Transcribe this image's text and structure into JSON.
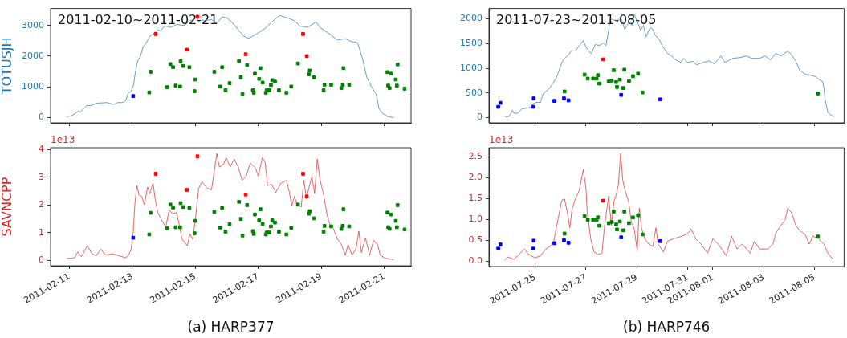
{
  "chart_data": [
    {
      "type": "line",
      "title": "2011-02-10~2011-02-21",
      "ylabel": "TOTUSJH",
      "tick_labels": "y",
      "xlim": [
        "2011-02-10T09:40",
        "2011-02-21T20:30"
      ],
      "xticks": [
        "2011-02-11",
        "2011-02-13",
        "2011-02-15",
        "2011-02-17",
        "2011-02-19",
        "2011-02-21"
      ],
      "ylim": [
        -170,
        3550
      ],
      "yticks": [
        0,
        1000,
        2000,
        3000
      ],
      "series": [
        {
          "type": "line",
          "color": "#1f77b4",
          "x": [
            "2011-02-10T22:00",
            "2011-02-11T02:00",
            "2011-02-11T07:10",
            "2011-02-11T08:10",
            "2011-02-11T13:20",
            "2011-02-11T17:20",
            "2011-02-11T20:25",
            "2011-02-12T04:35",
            "2011-02-12T09:40",
            "2011-02-12T12:50",
            "2011-02-12T16:50",
            "2011-02-12T18:55",
            "2011-02-12T20:55",
            "2011-02-12T23:00",
            "2011-02-13T01:00",
            "2011-02-13T02:00",
            "2011-02-13T03:05",
            "2011-02-13T04:05",
            "2011-02-13T06:05",
            "2011-02-13T08:10",
            "2011-02-13T10:15",
            "2011-02-13T13:20",
            "2011-02-13T16:20",
            "2011-02-13T19:25",
            "2011-02-13T21:30",
            "2011-02-14T00:30",
            "2011-02-14T05:40",
            "2011-02-14T09:45",
            "2011-02-14T15:50",
            "2011-02-14T19:55",
            "2011-02-15T00:00",
            "2011-02-15T03:05",
            "2011-02-15T06:10",
            "2011-02-15T12:20",
            "2011-02-15T16:25",
            "2011-02-15T20:30",
            "2011-02-16T00:30",
            "2011-02-16T04:40",
            "2011-02-16T08:45",
            "2011-02-16T12:50",
            "2011-02-16T16:55",
            "2011-02-16T23:00",
            "2011-02-17T05:10",
            "2011-02-17T11:15",
            "2011-02-17T16:25",
            "2011-02-17T22:30",
            "2011-02-18T03:40",
            "2011-02-18T07:45",
            "2011-02-18T13:50",
            "2011-02-18T20:00",
            "2011-02-19T00:00",
            "2011-02-19T06:10",
            "2011-02-19T12:20",
            "2011-02-19T18:25",
            "2011-02-19T22:30",
            "2011-02-20T03:40",
            "2011-02-20T04:40",
            "2011-02-20T07:40",
            "2011-02-20T10:45",
            "2011-02-20T14:50",
            "2011-02-20T17:55",
            "2011-02-20T20:00",
            "2011-02-20T23:00",
            "2011-02-21T03:05",
            "2011-02-21T07:10"
          ],
          "values": [
            30,
            70,
            220,
            180,
            390,
            400,
            470,
            490,
            430,
            490,
            490,
            550,
            810,
            850,
            1060,
            1390,
            1640,
            1850,
            1980,
            2310,
            2400,
            2650,
            2730,
            2860,
            2820,
            2980,
            2940,
            3030,
            3000,
            3150,
            3220,
            3320,
            3150,
            3190,
            3070,
            3280,
            3240,
            3070,
            2860,
            2650,
            2580,
            2730,
            2900,
            3150,
            3320,
            3240,
            3150,
            2980,
            2940,
            3110,
            2900,
            2730,
            2520,
            2570,
            2480,
            2440,
            2310,
            1890,
            1310,
            970,
            760,
            300,
            130,
            30,
            0
          ]
        },
        {
          "type": "scatter",
          "color": "#0000ff",
          "x": [
            "2011-02-13T00:40"
          ],
          "marker": "square",
          "values": [
            700
          ]
        },
        {
          "type": "scatter",
          "color": "#ff0000",
          "x": [
            "2011-02-13T17:50",
            "2011-02-14T17:30",
            "2011-02-15T01:40",
            "2011-02-16T14:25",
            "2011-02-18T10:10",
            "2011-02-18T13:00"
          ],
          "marker": "square",
          "values": [
            2720,
            2210,
            3280,
            2060,
            2720,
            2000
          ]
        },
        {
          "type": "scatter",
          "color": "#008000",
          "marker": "square",
          "x": [
            "2011-02-13T12:55",
            "2011-02-13T13:55",
            "2011-02-14T02:35",
            "2011-02-14T05:00",
            "2011-02-14T07:05",
            "2011-02-14T09:05",
            "2011-02-14T12:25",
            "2011-02-14T12:50",
            "2011-02-14T14:50",
            "2011-02-14T19:30",
            "2011-02-14T23:25",
            "2011-02-15T00:00",
            "2011-02-15T14:30",
            "2011-02-15T19:00",
            "2011-02-15T20:30",
            "2011-02-15T23:05",
            "2011-02-16T02:10",
            "2011-02-16T09:20",
            "2011-02-16T10:45",
            "2011-02-16T12:00",
            "2011-02-16T15:30",
            "2011-02-16T19:55",
            "2011-02-16T20:35",
            "2011-02-16T21:25",
            "2011-02-17T00:40",
            "2011-02-17T01:40",
            "2011-02-17T03:20",
            "2011-02-17T05:45",
            "2011-02-17T06:35",
            "2011-02-17T08:35",
            "2011-02-17T09:40",
            "2011-02-17T10:40",
            "2011-02-17T12:45",
            "2011-02-17T15:45",
            "2011-02-17T21:30",
            "2011-02-18T01:10",
            "2011-02-18T06:15",
            "2011-02-18T14:40",
            "2011-02-18T15:15",
            "2011-02-18T18:30",
            "2011-02-19T01:50",
            "2011-02-19T02:30",
            "2011-02-19T07:35",
            "2011-02-19T15:20",
            "2011-02-19T16:25",
            "2011-02-19T17:00",
            "2011-02-19T21:20",
            "2011-02-21T02:30",
            "2011-02-21T03:05",
            "2011-02-21T04:10",
            "2011-02-21T05:10",
            "2011-02-21T08:50",
            "2011-02-21T09:40",
            "2011-02-21T10:15",
            "2011-02-21T15:35"
          ],
          "values": [
            820,
            1490,
            990,
            1740,
            1640,
            1040,
            1010,
            1830,
            1680,
            1640,
            860,
            1240,
            1490,
            1010,
            1640,
            890,
            1120,
            1840,
            1310,
            770,
            1710,
            890,
            810,
            1430,
            1260,
            1610,
            1140,
            810,
            890,
            890,
            1060,
            1220,
            1170,
            890,
            810,
            1010,
            1760,
            1410,
            1530,
            1310,
            890,
            1070,
            1070,
            960,
            1070,
            1610,
            1070,
            1480,
            1040,
            960,
            1430,
            1240,
            1040,
            1730,
            940
          ]
        }
      ]
    },
    {
      "type": "line",
      "title": "2011-07-23~2011-08-05",
      "tick_labels": "y",
      "xlim": [
        "2011-07-23T04:20",
        "2011-08-06T04:00"
      ],
      "xticks": [
        "2011-07-25",
        "2011-07-27",
        "2011-07-29",
        "2011-07-31",
        "2011-08-01",
        "2011-08-03",
        "2011-08-05"
      ],
      "ylim": [
        -105,
        2210
      ],
      "yticks": [
        0,
        500,
        1000,
        1500,
        2000
      ],
      "series": [
        {
          "type": "line",
          "color": "#1f77b4",
          "x": [
            "2011-07-23T19:40",
            "2011-07-23T22:40",
            "2011-07-24T01:20",
            "2011-07-24T02:30",
            "2011-07-24T03:50",
            "2011-07-24T07:35",
            "2011-07-24T11:25",
            "2011-07-24T15:10",
            "2011-07-24T20:10",
            "2011-07-24T22:40",
            "2011-07-25T01:15",
            "2011-07-25T05:05",
            "2011-07-25T07:35",
            "2011-07-25T12:35",
            "2011-07-25T16:25",
            "2011-07-25T20:10",
            "2011-07-25T22:45",
            "2011-07-26T01:15",
            "2011-07-26T03:50",
            "2011-07-26T07:35",
            "2011-07-26T10:05",
            "2011-07-26T13:55",
            "2011-07-26T17:40",
            "2011-07-26T21:30",
            "2011-07-27T00:00",
            "2011-07-27T02:30",
            "2011-07-27T05:05",
            "2011-07-27T08:50",
            "2011-07-27T12:40",
            "2011-07-27T16:25",
            "2011-07-27T18:55",
            "2011-07-27T21:30",
            "2011-07-27T22:45",
            "2011-07-28T02:30",
            "2011-07-28T06:20",
            "2011-07-28T08:50",
            "2011-07-28T12:40",
            "2011-07-28T16:25",
            "2011-07-28T20:10",
            "2011-07-28T21:30",
            "2011-07-29T01:15",
            "2011-07-29T03:45",
            "2011-07-29T06:20",
            "2011-07-29T08:50",
            "2011-07-29T12:40",
            "2011-07-29T15:10",
            "2011-07-29T17:40",
            "2011-07-29T21:30",
            "2011-07-30T00:00",
            "2011-07-30T02:30",
            "2011-07-30T05:05",
            "2011-07-30T08:50",
            "2011-07-30T12:40",
            "2011-07-30T17:40",
            "2011-07-30T20:10",
            "2011-07-31T00:00",
            "2011-07-31T05:05",
            "2011-07-31T08:50",
            "2011-07-31T15:10",
            "2011-07-31T20:10",
            "2011-08-01T01:15",
            "2011-08-01T07:35",
            "2011-08-01T11:20",
            "2011-08-01T18:55",
            "2011-08-02T02:30",
            "2011-08-02T07:35",
            "2011-08-02T12:40",
            "2011-08-02T20:10",
            "2011-08-03T01:15",
            "2011-08-03T06:20",
            "2011-08-03T11:20",
            "2011-08-03T16:25",
            "2011-08-03T22:45",
            "2011-08-04T02:30",
            "2011-08-04T06:20",
            "2011-08-04T10:05",
            "2011-08-04T15:10",
            "2011-08-04T20:10",
            "2011-08-05T01:15",
            "2011-08-05T03:45",
            "2011-08-05T07:35",
            "2011-08-05T08:50",
            "2011-08-05T10:05",
            "2011-08-05T12:40",
            "2011-08-05T16:25",
            "2011-08-05T18:55"
          ],
          "values": [
            10,
            20,
            90,
            150,
            90,
            90,
            180,
            190,
            210,
            290,
            310,
            310,
            490,
            570,
            680,
            810,
            960,
            1120,
            1200,
            1270,
            1350,
            1350,
            1460,
            1560,
            1430,
            1350,
            1300,
            1480,
            1460,
            1510,
            1460,
            1770,
            2000,
            1980,
            1950,
            2030,
            1790,
            1920,
            1870,
            2100,
            1900,
            1770,
            1870,
            1640,
            1820,
            1790,
            1660,
            1580,
            1460,
            1380,
            1300,
            1250,
            1170,
            1120,
            1200,
            1120,
            1140,
            1070,
            1120,
            1150,
            1090,
            1250,
            1120,
            1200,
            1220,
            1250,
            1200,
            1200,
            1250,
            1170,
            1300,
            1250,
            1350,
            1270,
            1140,
            960,
            880,
            860,
            830,
            780,
            730,
            620,
            360,
            100,
            40,
            20
          ]
        },
        {
          "type": "scatter",
          "color": "#0000ff",
          "x": [
            "2011-07-23T13:10",
            "2011-07-23T15:10",
            "2011-07-24T22:15",
            "2011-07-24T22:40",
            "2011-07-25T18:10",
            "2011-07-26T03:15",
            "2011-07-26T07:35",
            "2011-07-28T09:20",
            "2011-07-29T22:10"
          ],
          "marker": "square",
          "values": [
            220,
            300,
            220,
            390,
            340,
            390,
            350,
            460,
            370
          ]
        },
        {
          "type": "scatter",
          "color": "#ff0000",
          "x": [
            "2011-07-27T16:25"
          ],
          "marker": "square",
          "values": [
            1180
          ]
        },
        {
          "type": "scatter",
          "color": "#008000",
          "x": [
            "2011-07-26T03:50",
            "2011-07-26T22:45",
            "2011-07-27T01:45",
            "2011-07-27T06:50",
            "2011-07-27T10:05",
            "2011-07-27T11:20",
            "2011-07-27T12:40",
            "2011-07-27T21:30",
            "2011-07-28T00:30",
            "2011-07-28T02:15",
            "2011-07-28T04:35",
            "2011-07-28T05:20",
            "2011-07-28T08:05",
            "2011-07-28T11:20",
            "2011-07-28T12:20",
            "2011-07-28T16:40",
            "2011-07-28T20:30",
            "2011-07-29T01:15",
            "2011-07-29T05:30",
            "2011-08-05T03:15"
          ],
          "marker": "square",
          "values": [
            530,
            870,
            790,
            790,
            790,
            860,
            690,
            730,
            750,
            960,
            720,
            620,
            770,
            600,
            970,
            740,
            840,
            890,
            510,
            490
          ]
        }
      ]
    },
    {
      "type": "line",
      "xlabel": "(a) HARP377",
      "ylabel": "SAVNCPP",
      "annotations": [
        "1e13"
      ],
      "xlim": [
        "2011-02-10T09:40",
        "2011-02-21T20:30"
      ],
      "xticks": [
        "2011-02-11",
        "2011-02-13",
        "2011-02-15",
        "2011-02-17",
        "2011-02-19",
        "2011-02-21"
      ],
      "ylim": [
        -0.19,
        4.07
      ],
      "yticks": [
        0,
        1,
        2,
        3,
        4
      ],
      "series": [
        {
          "type": "line",
          "color": "#d62728",
          "x": [
            "2011-02-10T22:00",
            "2011-02-11T04:05",
            "2011-02-11T06:30",
            "2011-02-11T09:10",
            "2011-02-11T13:40",
            "2011-02-11T17:20",
            "2011-02-11T20:25",
            "2011-02-12T00:05",
            "2011-02-12T03:35",
            "2011-02-12T08:40",
            "2011-02-12T13:50",
            "2011-02-12T18:55",
            "2011-02-12T20:55",
            "2011-02-12T23:00",
            "2011-02-13T00:40",
            "2011-02-13T02:00",
            "2011-02-13T03:30",
            "2011-02-13T05:10",
            "2011-02-13T07:10",
            "2011-02-13T09:10",
            "2011-02-13T11:40",
            "2011-02-13T13:20",
            "2011-02-13T15:45",
            "2011-02-13T17:25",
            "2011-02-13T19:25",
            "2011-02-13T22:30",
            "2011-02-14T01:30",
            "2011-02-14T04:00",
            "2011-02-14T06:40",
            "2011-02-14T09:45",
            "2011-02-14T12:10",
            "2011-02-14T13:50",
            "2011-02-14T16:15",
            "2011-02-14T17:55",
            "2011-02-14T19:55",
            "2011-02-14T22:00",
            "2011-02-15T00:00",
            "2011-02-15T02:30",
            "2011-02-15T05:10",
            "2011-02-15T09:10",
            "2011-02-15T12:20",
            "2011-02-15T14:20",
            "2011-02-15T16:25",
            "2011-02-15T18:25",
            "2011-02-15T21:30",
            "2011-02-15T23:30",
            "2011-02-16T02:35",
            "2011-02-16T05:40",
            "2011-02-16T08:45",
            "2011-02-16T11:45",
            "2011-02-16T14:50",
            "2011-02-16T17:55",
            "2011-02-16T22:00",
            "2011-02-17T00:00",
            "2011-02-17T03:05",
            "2011-02-17T05:10",
            "2011-02-17T07:10",
            "2011-02-17T10:15",
            "2011-02-17T13:20",
            "2011-02-17T17:25",
            "2011-02-17T21:30",
            "2011-02-17T23:30",
            "2011-02-18T01:35",
            "2011-02-18T03:35",
            "2011-02-18T05:40",
            "2011-02-18T08:45",
            "2011-02-18T10:45",
            "2011-02-18T12:50",
            "2011-02-18T14:15",
            "2011-02-18T16:55",
            "2011-02-18T18:55",
            "2011-02-18T21:00",
            "2011-02-18T23:00",
            "2011-02-19T02:05",
            "2011-02-19T04:30",
            "2011-02-19T06:35",
            "2011-02-19T09:15",
            "2011-02-19T12:20",
            "2011-02-19T15:20",
            "2011-02-19T18:25",
            "2011-02-19T20:30",
            "2011-02-19T23:30",
            "2011-02-20T02:35",
            "2011-02-20T04:40",
            "2011-02-20T06:40",
            "2011-02-20T09:45",
            "2011-02-20T12:50",
            "2011-02-20T15:55",
            "2011-02-20T18:55",
            "2011-02-20T21:00",
            "2011-02-21T01:05",
            "2011-02-21T07:10"
          ],
          "values": [
            0.07,
            0.1,
            0.31,
            0.14,
            0.53,
            0.24,
            0.17,
            0.41,
            0.19,
            0.24,
            0.17,
            0.1,
            0.17,
            0.39,
            1.01,
            2.07,
            2.7,
            2.36,
            2.31,
            2.02,
            2.65,
            2.41,
            2.8,
            2.22,
            1.73,
            1.45,
            1.2,
            1.83,
            1.69,
            1.73,
            1.2,
            0.77,
            0.63,
            0.53,
            0.96,
            0.77,
            1.45,
            2.6,
            2.84,
            2.6,
            2.55,
            3.18,
            3.86,
            3.37,
            3.47,
            3.71,
            3.37,
            3.66,
            3.37,
            2.89,
            3.04,
            3.52,
            3.33,
            3.04,
            3.71,
            3.57,
            2.7,
            2.75,
            2.46,
            2.8,
            2.89,
            2.51,
            1.98,
            2.31,
            2.02,
            1.93,
            2.89,
            2.22,
            2.55,
            3.04,
            2.41,
            3.66,
            2.94,
            2.31,
            1.64,
            1.3,
            1.16,
            0.77,
            0.58,
            0.19,
            0.58,
            0.19,
            0.43,
            1.06,
            0.29,
            0.82,
            0.19,
            0.72,
            0.58,
            0.19,
            0.08,
            0.03
          ]
        },
        {
          "type": "scatter",
          "color": "#0000ff",
          "x": [
            "2011-02-13T00:40"
          ],
          "marker": "square",
          "values": [
            0.82
          ]
        },
        {
          "type": "scatter",
          "color": "#ff0000",
          "x": [
            "2011-02-13T17:50",
            "2011-02-14T17:30",
            "2011-02-15T01:40",
            "2011-02-16T14:25",
            "2011-02-18T10:10",
            "2011-02-18T13:00"
          ],
          "marker": "square",
          "values": [
            3.13,
            2.55,
            3.76,
            2.38,
            3.13,
            2.31
          ]
        },
        {
          "type": "scatter",
          "color": "#008000",
          "marker": "square",
          "x": [
            "2011-02-13T12:55",
            "2011-02-13T13:55",
            "2011-02-14T02:35",
            "2011-02-14T05:00",
            "2011-02-14T07:05",
            "2011-02-14T09:05",
            "2011-02-14T12:25",
            "2011-02-14T12:50",
            "2011-02-14T14:50",
            "2011-02-14T19:30",
            "2011-02-14T23:25",
            "2011-02-15T00:00",
            "2011-02-15T14:30",
            "2011-02-15T19:00",
            "2011-02-15T20:30",
            "2011-02-15T23:05",
            "2011-02-16T02:10",
            "2011-02-16T09:20",
            "2011-02-16T10:45",
            "2011-02-16T12:00",
            "2011-02-16T15:30",
            "2011-02-16T19:55",
            "2011-02-16T20:35",
            "2011-02-16T21:25",
            "2011-02-17T00:40",
            "2011-02-17T01:40",
            "2011-02-17T03:20",
            "2011-02-17T05:45",
            "2011-02-17T06:35",
            "2011-02-17T08:35",
            "2011-02-17T09:40",
            "2011-02-17T10:40",
            "2011-02-17T12:45",
            "2011-02-17T15:45",
            "2011-02-17T21:30",
            "2011-02-18T01:10",
            "2011-02-18T06:15",
            "2011-02-18T14:40",
            "2011-02-18T15:15",
            "2011-02-18T18:30",
            "2011-02-19T01:50",
            "2011-02-19T02:30",
            "2011-02-19T07:35",
            "2011-02-19T15:20",
            "2011-02-19T16:25",
            "2011-02-19T17:00",
            "2011-02-19T21:20",
            "2011-02-21T02:30",
            "2011-02-21T03:05",
            "2011-02-21T04:10",
            "2011-02-21T05:10",
            "2011-02-21T08:50",
            "2011-02-21T09:40",
            "2011-02-21T10:15",
            "2011-02-21T15:35"
          ],
          "values": [
            0.94,
            1.72,
            1.16,
            2.02,
            1.91,
            1.2,
            1.2,
            2.07,
            1.93,
            1.9,
            0.98,
            1.43,
            1.75,
            1.19,
            1.9,
            1.04,
            1.31,
            2.12,
            1.5,
            0.9,
            2.0,
            1.06,
            0.96,
            1.66,
            1.45,
            1.85,
            1.32,
            0.94,
            1.01,
            1.01,
            1.23,
            1.45,
            1.37,
            1.04,
            0.94,
            1.18,
            2.02,
            1.69,
            1.78,
            1.52,
            1.04,
            1.25,
            1.23,
            1.14,
            1.25,
            1.85,
            1.23,
            1.73,
            1.2,
            1.14,
            1.66,
            1.43,
            1.2,
            2.0,
            1.12
          ]
        }
      ]
    },
    {
      "type": "line",
      "xlabel": "(b) HARP746",
      "annotations": [
        "1e13"
      ],
      "xlim": [
        "2011-07-23T04:20",
        "2011-08-06T04:00"
      ],
      "xticks": [
        "2011-07-25",
        "2011-07-27",
        "2011-07-29",
        "2011-07-31",
        "2011-08-01",
        "2011-08-03",
        "2011-08-05"
      ],
      "ylim": [
        -0.13,
        2.72
      ],
      "yticks": [
        {
          "value": 0,
          "label": "0.0"
        },
        {
          "value": 0.5,
          "label": "0.5"
        },
        {
          "value": 1,
          "label": "1.0"
        },
        {
          "value": 1.5,
          "label": "1.5"
        },
        {
          "value": 2,
          "label": "2.0"
        },
        {
          "value": 2.5,
          "label": "2.5"
        }
      ],
      "series": [
        {
          "type": "line",
          "color": "#d62728",
          "x": [
            "2011-07-23T19:40",
            "2011-07-23T22:40",
            "2011-07-24T03:50",
            "2011-07-24T10:10",
            "2011-07-24T13:55",
            "2011-07-24T17:40",
            "2011-07-24T20:10",
            "2011-07-25T00:00",
            "2011-07-25T05:05",
            "2011-07-25T10:05",
            "2011-07-25T15:10",
            "2011-07-25T17:40",
            "2011-07-25T21:30",
            "2011-07-26T01:15",
            "2011-07-26T03:50",
            "2011-07-26T06:20",
            "2011-07-26T08:50",
            "2011-07-26T10:50",
            "2011-07-26T13:55",
            "2011-07-26T17:40",
            "2011-07-26T21:30",
            "2011-07-27T00:00",
            "2011-07-27T01:15",
            "2011-07-27T04:30",
            "2011-07-27T07:35",
            "2011-07-27T11:20",
            "2011-07-27T15:10",
            "2011-07-27T17:40",
            "2011-07-27T21:30",
            "2011-07-28T00:00",
            "2011-07-28T02:30",
            "2011-07-28T04:50",
            "2011-07-28T06:35",
            "2011-07-28T08:50",
            "2011-07-28T10:50",
            "2011-07-28T12:40",
            "2011-07-28T16:25",
            "2011-07-28T18:55",
            "2011-07-28T21:30",
            "2011-07-29T00:30",
            "2011-07-29T02:30",
            "2011-07-29T04:30",
            "2011-07-29T07:35",
            "2011-07-29T11:20",
            "2011-07-29T15:10",
            "2011-07-29T18:10",
            "2011-07-29T20:10",
            "2011-07-30T01:15",
            "2011-07-30T05:05",
            "2011-07-30T11:20",
            "2011-07-30T18:55",
            "2011-07-30T22:45",
            "2011-07-31T03:45",
            "2011-07-31T07:35",
            "2011-07-31T12:40",
            "2011-07-31T18:55",
            "2011-08-01T00:00",
            "2011-08-01T05:05",
            "2011-08-01T12:35",
            "2011-08-01T17:40",
            "2011-08-01T22:45",
            "2011-08-02T03:45",
            "2011-08-02T11:20",
            "2011-08-02T15:10",
            "2011-08-02T20:10",
            "2011-08-03T03:45",
            "2011-08-03T08:50",
            "2011-08-03T11:20",
            "2011-08-03T16:25",
            "2011-08-03T20:10",
            "2011-08-03T22:45",
            "2011-08-04T02:30",
            "2011-08-04T06:20",
            "2011-08-04T10:05",
            "2011-08-04T15:10",
            "2011-08-04T18:55",
            "2011-08-04T22:45",
            "2011-08-05T03:45",
            "2011-08-05T08:50",
            "2011-08-05T12:40",
            "2011-08-05T17:40"
          ],
          "values": [
            0.03,
            0.1,
            0.04,
            0.19,
            0.29,
            0.16,
            0.13,
            0.08,
            0.13,
            0.29,
            0.38,
            0.48,
            0.99,
            1.46,
            1.49,
            1.18,
            0.8,
            1.24,
            1.49,
            1.69,
            2.19,
            1.75,
            1.18,
            0.54,
            0.22,
            0.16,
            0.19,
            0.86,
            1.56,
            0.86,
            1.43,
            1.62,
            1.81,
            2.58,
            1.94,
            1.72,
            1.43,
            0.92,
            0.8,
            0.25,
            1.27,
            0.8,
            0.54,
            0.41,
            0.35,
            0.8,
            0.41,
            0.22,
            0.48,
            0.54,
            0.6,
            0.64,
            0.76,
            0.54,
            0.41,
            0.19,
            0.54,
            0.41,
            0.13,
            0.6,
            0.29,
            0.41,
            0.19,
            0.48,
            0.29,
            0.29,
            0.41,
            0.67,
            0.86,
            0.99,
            1.27,
            1.15,
            0.86,
            0.73,
            0.64,
            0.41,
            0.6,
            0.54,
            0.41,
            0.19,
            0.04
          ]
        },
        {
          "type": "scatter",
          "color": "#0000ff",
          "x": [
            "2011-07-23T13:10",
            "2011-07-23T15:10",
            "2011-07-24T22:15",
            "2011-07-24T22:40",
            "2011-07-25T18:10",
            "2011-07-26T03:15",
            "2011-07-26T07:35",
            "2011-07-28T09:20",
            "2011-07-29T22:10"
          ],
          "marker": "square",
          "values": [
            0.3,
            0.4,
            0.3,
            0.49,
            0.43,
            0.5,
            0.44,
            0.57,
            0.48
          ]
        },
        {
          "type": "scatter",
          "color": "#ff0000",
          "x": [
            "2011-07-27T16:25"
          ],
          "marker": "square",
          "values": [
            1.45
          ]
        },
        {
          "type": "scatter",
          "color": "#008000",
          "x": [
            "2011-07-26T03:50",
            "2011-07-26T22:45",
            "2011-07-27T01:45",
            "2011-07-27T06:50",
            "2011-07-27T10:05",
            "2011-07-27T11:20",
            "2011-07-27T12:40",
            "2011-07-27T21:30",
            "2011-07-28T00:30",
            "2011-07-28T02:15",
            "2011-07-28T04:35",
            "2011-07-28T05:20",
            "2011-07-28T08:05",
            "2011-07-28T11:20",
            "2011-07-28T12:20",
            "2011-07-28T16:40",
            "2011-07-28T20:30",
            "2011-07-29T01:15",
            "2011-07-29T05:30",
            "2011-08-05T03:15"
          ],
          "marker": "square",
          "values": [
            0.66,
            1.08,
            0.99,
            0.99,
            0.99,
            1.05,
            0.85,
            0.91,
            0.94,
            1.19,
            0.88,
            0.76,
            0.95,
            0.74,
            1.19,
            0.91,
            1.05,
            1.1,
            0.64,
            0.59
          ]
        }
      ]
    }
  ]
}
